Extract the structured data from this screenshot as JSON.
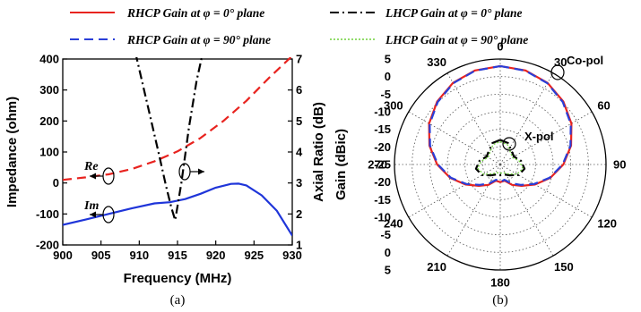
{
  "legend": {
    "entries": [
      {
        "label": "RHCP Gain at φ = 0° plane",
        "color": "#e8231f",
        "dash": "solid"
      },
      {
        "label": "LHCP Gain at φ = 0° plane",
        "color": "#000000",
        "dash": "dashdot"
      },
      {
        "label": "RHCP Gain at φ = 90° plane",
        "color": "#2a3fd8",
        "dash": "dashed"
      },
      {
        "label": "LHCP Gain at φ = 90° plane",
        "color": "#6fd13a",
        "dash": "dotted"
      }
    ]
  },
  "chart_data": [
    {
      "type": "line",
      "panel_caption": "(a)",
      "xlabel": "Frequency (MHz)",
      "ylabel_left": "Impedance (ohm)",
      "ylabel_right": "Axial Ratio (dB)",
      "xlim": [
        900,
        930
      ],
      "ylim_left": [
        -200,
        400
      ],
      "ylim_right": [
        1,
        7
      ],
      "x_ticks": [
        "900",
        "905",
        "910",
        "915",
        "920",
        "925",
        "930"
      ],
      "y_ticks_left": [
        "-200",
        "-100",
        "0",
        "100",
        "200",
        "300",
        "400"
      ],
      "y_ticks_right": [
        "1",
        "2",
        "3",
        "4",
        "5",
        "6",
        "7"
      ],
      "annotations": [
        "Re",
        "Im"
      ],
      "series": [
        {
          "name": "Re",
          "axis": "left",
          "color": "#e8231f",
          "dash": "dashed",
          "x": [
            900,
            903,
            906,
            909,
            912,
            915,
            918,
            921,
            924,
            927,
            930
          ],
          "y": [
            10,
            18,
            28,
            45,
            70,
            102,
            145,
            200,
            265,
            340,
            410
          ]
        },
        {
          "name": "Im",
          "axis": "left",
          "color": "#1f35d9",
          "dash": "solid",
          "x": [
            900,
            903,
            906,
            909,
            912,
            914,
            916,
            918,
            920,
            922,
            923,
            924,
            926,
            928,
            930
          ],
          "y": [
            -135,
            -118,
            -100,
            -82,
            -66,
            -62,
            -52,
            -35,
            -15,
            -3,
            -2,
            -8,
            -40,
            -90,
            -170
          ]
        },
        {
          "name": "Axial Ratio",
          "axis": "right",
          "color": "#000000",
          "dash": "dashdot",
          "x": [
            909.5,
            911,
            912.5,
            913.5,
            914.2,
            914.7,
            915.5,
            916.5,
            917.5,
            918.3
          ],
          "y": [
            7.2,
            5.6,
            4.0,
            2.9,
            2.2,
            1.8,
            3.0,
            4.8,
            6.3,
            7.2
          ]
        }
      ]
    },
    {
      "type": "polar",
      "panel_caption": "(b)",
      "ylabel": "Gain (dBic)",
      "r_range": [
        -25,
        5
      ],
      "angle_ticks": [
        "0",
        "30",
        "60",
        "90",
        "120",
        "150",
        "180",
        "210",
        "240",
        "270",
        "300",
        "330"
      ],
      "r_ticks": [
        "5",
        "0",
        "-5",
        "-10",
        "-15",
        "-20",
        "-25",
        "-20",
        "-15",
        "-10",
        "-5",
        "0",
        "5"
      ],
      "annotations": [
        "Co-pol",
        "X-pol"
      ],
      "series": [
        {
          "name": "RHCP Gain at φ = 0° plane",
          "color": "#e8231f",
          "dash": "solid",
          "theta": [
            0,
            15,
            30,
            45,
            60,
            75,
            90,
            105,
            120,
            135,
            150,
            165,
            180,
            195,
            210,
            225,
            240,
            255,
            270,
            285,
            300,
            315,
            330,
            345,
            360
          ],
          "r": [
            3,
            2.7,
            1.8,
            0.3,
            -1.7,
            -4.2,
            -7.1,
            -10.3,
            -13.6,
            -16.4,
            -18.3,
            -20.2,
            -20,
            -20.2,
            -18.3,
            -16.4,
            -13.6,
            -10.3,
            -7.1,
            -4.2,
            -1.7,
            0.3,
            1.8,
            2.7,
            3
          ]
        },
        {
          "name": "RHCP Gain at φ = 90° plane",
          "color": "#2a3fd8",
          "dash": "dashed",
          "theta": [
            0,
            15,
            30,
            45,
            60,
            75,
            90,
            105,
            120,
            135,
            150,
            165,
            180,
            195,
            210,
            225,
            240,
            255,
            270,
            285,
            300,
            315,
            330,
            345,
            360
          ],
          "r": [
            3,
            2.6,
            1.7,
            0.1,
            -1.9,
            -4.4,
            -7.3,
            -10.5,
            -13.9,
            -16.8,
            -18.8,
            -20.5,
            -20,
            -20.5,
            -18.8,
            -16.8,
            -13.9,
            -10.5,
            -7.3,
            -4.4,
            -1.9,
            0.1,
            1.7,
            2.6,
            3
          ]
        },
        {
          "name": "LHCP Gain at φ = 0° plane",
          "color": "#000000",
          "dash": "dashdot",
          "theta": [
            0,
            20,
            40,
            60,
            80,
            100,
            120,
            140,
            160,
            180,
            200,
            220,
            240,
            260,
            280,
            300,
            320,
            340,
            360
          ],
          "r": [
            -18,
            -18.5,
            -20,
            -20.5,
            -19,
            -18,
            -19,
            -21,
            -22,
            -22,
            -22,
            -21,
            -19,
            -18,
            -19,
            -20.5,
            -20,
            -18.5,
            -18
          ]
        },
        {
          "name": "LHCP Gain at φ = 90° plane",
          "color": "#6fd13a",
          "dash": "dotted",
          "theta": [
            0,
            20,
            40,
            60,
            80,
            100,
            120,
            140,
            160,
            180,
            200,
            220,
            240,
            260,
            280,
            300,
            320,
            340,
            360
          ],
          "r": [
            -18.5,
            -19,
            -20.5,
            -21,
            -19.5,
            -18.5,
            -19.5,
            -21.5,
            -22.5,
            -22.5,
            -22.5,
            -21.5,
            -19.5,
            -18.5,
            -19.5,
            -21,
            -20.5,
            -19,
            -18.5
          ]
        }
      ]
    }
  ]
}
